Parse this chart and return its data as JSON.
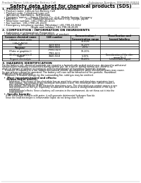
{
  "bg_color": "#ffffff",
  "header_left": "Product Name: Lithium Ion Battery Cell",
  "header_right_line1": "Substance Number: 99HJ-099-00010",
  "header_right_line2": "Establishment / Revision: Dec.7.2009",
  "title": "Safety data sheet for chemical products (SDS)",
  "section1_title": "1. PRODUCT AND COMPANY IDENTIFICATION",
  "section1_lines": [
    "  • Product name: Lithium Ion Battery Cell",
    "  • Product code: Cylindrical-type cell",
    "     INR18650J, INR18650L, INR18650A",
    "  • Company name:     Sanyo Electric Co., Ltd., Mobile Energy Company",
    "  • Address:           2001, Kamitomitsune, Sumoto City, Hyogo, Japan",
    "  • Telephone number: +81-(799)-20-4111",
    "  • Fax number: +81-(799)-26-4129",
    "  • Emergency telephone number (Weekday) +81-799-20-3662",
    "                                    (Night and holiday) +81-799-26-4129"
  ],
  "section2_title": "2. COMPOSITION / INFORMATION ON INGREDIENTS",
  "section2_sub": "  • Substance or preparation: Preparation",
  "section2_sub2": "  • Information about the chemical nature of product:",
  "table_headers": [
    "Common chemical name",
    "CAS number",
    "Concentration /\nConcentration range",
    "Classification and\nhazard labeling"
  ],
  "table_rows": [
    [
      "Lithium cobalt oxide\n(LiMnCoNiO4)",
      "-",
      "30-60%",
      ""
    ],
    [
      "Iron",
      "7439-89-6",
      "15-25%",
      ""
    ],
    [
      "Aluminum",
      "7429-90-5",
      "2-5%",
      ""
    ],
    [
      "Graphite\n(Flake or graphite-I)\n(Artificial graphite-I)",
      "77061-02-5\n7782-42-5",
      "10-20%",
      ""
    ],
    [
      "Copper",
      "7440-50-8",
      "5-15%",
      "Sensitization of the skin\ngroup No.2"
    ],
    [
      "Organic electrolyte",
      "-",
      "10-20%",
      "Inflammable liquid"
    ]
  ],
  "section3_title": "3. HAZARDS IDENTIFICATION",
  "section3_para1": "For the battery cell, chemical materials are stored in a hermetically sealed metal case, designed to withstand",
  "section3_para2": "temperatures normally encountered during normal use. As a result, during normal use, there is no",
  "section3_para3": "physical danger of ignition or explosion and thermal/danger of hazardous materials leakage.",
  "section3_para4": "    However, if exposed to a fire, added mechanical shocks, decomposed, when electrolyte many may cause.",
  "section3_para5": "Its gas release cannot be operated. The battery cell case will be breached of fire-portions. Hazardous",
  "section3_para6": "materials may be released.",
  "section3_para7": "    Moreover, if heated strongly by the surrounding fire, solid gas may be emitted.",
  "section3_hazard_title": "  •  Most important hazard and effects:",
  "section3_human": "     Human health effects:",
  "section3_human_lines": [
    "          Inhalation: The release of the electrolyte has an anesthetic action and stimulates respiratory tract.",
    "          Skin contact: The release of the electrolyte stimulates a skin. The electrolyte skin contact causes a",
    "          sore and stimulation on the skin.",
    "          Eye contact: The release of the electrolyte stimulates eyes. The electrolyte eye contact causes a sore",
    "          and stimulation on the eye. Especially, a substance that causes a strong inflammation of the eye is",
    "          contained.",
    "          Environmental effects: Since a battery cell remains in the environment, do not throw out it into the",
    "          environment."
  ],
  "section3_specific": "  •  Specific hazards:",
  "section3_specific_lines": [
    "     If the electrolyte contacts with water, it will generate detrimental hydrogen fluoride.",
    "     Since the lead electrolyte is inflammable liquid, do not bring close to fire."
  ],
  "fs_header": 2.8,
  "fs_title": 4.8,
  "fs_section": 3.2,
  "fs_body": 2.5,
  "fs_table": 2.3,
  "line_color": "#aaaaaa",
  "table_header_bg": "#cccccc"
}
